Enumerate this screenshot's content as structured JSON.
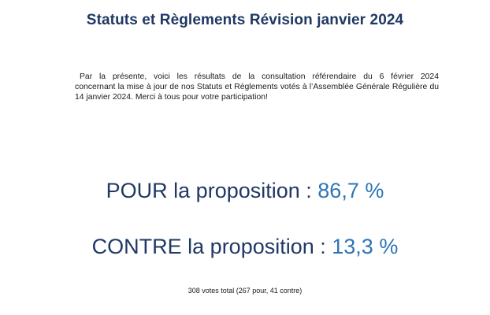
{
  "document": {
    "title": "Statuts et Règlements Révision janvier 2024",
    "intro_lines": [
      "Par la présente, voici les résultats de la consultation référendaire du 6 février 2024",
      "concernant la mise à jour de nos Statuts et Règlements votés à l’Assemblée Générale Régulière du",
      "14 janvier 2024. Merci à tous pour votre participation!"
    ],
    "results": {
      "pour_label": "POUR la proposition : ",
      "pour_value": "86,7 %",
      "contre_label": "CONTRE la proposition : ",
      "contre_value": "13,3 %"
    },
    "totals": "308 votes total (267 pour, 41 contre)"
  },
  "colors": {
    "title": "#1f3864",
    "result_label": "#1f3864",
    "result_value": "#2e75b6"
  }
}
